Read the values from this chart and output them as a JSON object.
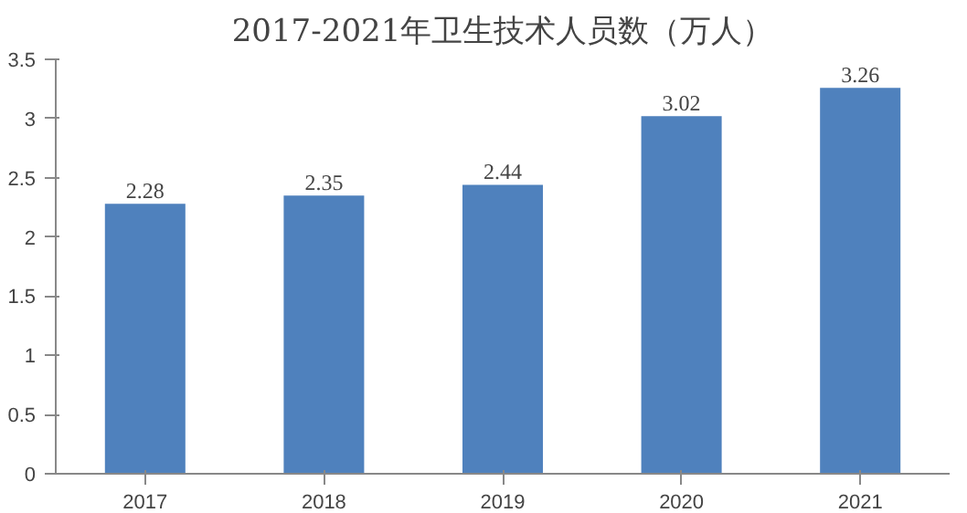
{
  "chart_data": {
    "type": "bar",
    "title": "2017-2021年卫生技术人员数（万人）",
    "categories": [
      "2017",
      "2018",
      "2019",
      "2020",
      "2021"
    ],
    "values": [
      2.28,
      2.35,
      2.44,
      3.02,
      3.26
    ],
    "color": "#4f81bd",
    "ylim": [
      0,
      3.5
    ],
    "yticks": [
      0,
      0.5,
      1,
      1.5,
      2,
      2.5,
      3,
      3.5
    ],
    "data_labels": true,
    "grid": false
  }
}
